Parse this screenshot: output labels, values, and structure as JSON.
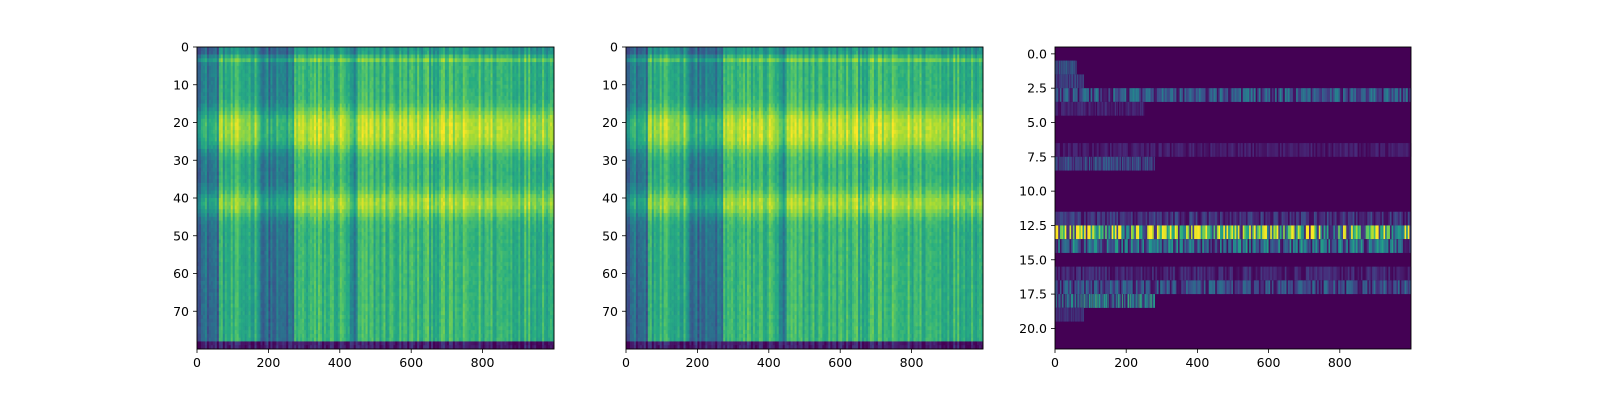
{
  "chart_data": [
    {
      "type": "heatmap",
      "title": "",
      "xlabel": "",
      "ylabel": "",
      "colormap": "viridis",
      "xlim": [
        0,
        1000
      ],
      "ylim": [
        80,
        0
      ],
      "xticks": [
        0,
        200,
        400,
        600,
        800
      ],
      "yticks": [
        0,
        10,
        20,
        30,
        40,
        50,
        60,
        70
      ],
      "xtick_labels": [
        "0",
        "200",
        "400",
        "600",
        "800"
      ],
      "ytick_labels": [
        "0",
        "10",
        "20",
        "30",
        "40",
        "50",
        "60",
        "70"
      ],
      "description_values": {
        "rows": 80,
        "cols": 1000,
        "bands": [
          {
            "row_center": 19,
            "strength": 0.9
          },
          {
            "row_center": 24,
            "strength": 0.85
          },
          {
            "row_center": 41,
            "strength": 0.9
          }
        ],
        "dark_columns": [
          [
            0,
            60
          ],
          [
            180,
            270
          ],
          [
            430,
            450
          ]
        ],
        "dark_bottom_rows": [
          79,
          80
        ]
      }
    },
    {
      "type": "heatmap",
      "title": "",
      "xlabel": "",
      "ylabel": "",
      "colormap": "viridis",
      "xlim": [
        0,
        1000
      ],
      "ylim": [
        80,
        0
      ],
      "xticks": [
        0,
        200,
        400,
        600,
        800
      ],
      "yticks": [
        0,
        10,
        20,
        30,
        40,
        50,
        60,
        70
      ],
      "xtick_labels": [
        "0",
        "200",
        "400",
        "600",
        "800"
      ],
      "ytick_labels": [
        "0",
        "10",
        "20",
        "30",
        "40",
        "50",
        "60",
        "70"
      ],
      "description_values": {
        "rows": 80,
        "cols": 1000,
        "bands": [
          {
            "row_center": 19,
            "strength": 0.9
          },
          {
            "row_center": 24,
            "strength": 0.85
          },
          {
            "row_center": 41,
            "strength": 0.9
          }
        ],
        "dark_columns": [
          [
            0,
            60
          ],
          [
            180,
            270
          ],
          [
            430,
            450
          ]
        ],
        "dark_bottom_rows": [
          79,
          80
        ]
      }
    },
    {
      "type": "heatmap",
      "title": "",
      "xlabel": "",
      "ylabel": "",
      "colormap": "viridis",
      "xlim": [
        0,
        1000
      ],
      "ylim": [
        21.5,
        -0.5
      ],
      "xticks": [
        0,
        200,
        400,
        600,
        800
      ],
      "yticks": [
        0.0,
        2.5,
        5.0,
        7.5,
        10.0,
        12.5,
        15.0,
        17.5,
        20.0
      ],
      "xtick_labels": [
        "0",
        "200",
        "400",
        "600",
        "800"
      ],
      "ytick_labels": [
        "0.0",
        "2.5",
        "5.0",
        "7.5",
        "10.0",
        "12.5",
        "15.0",
        "17.5",
        "20.0"
      ],
      "active_rows": [
        {
          "row": 1,
          "x_range": [
            0,
            60
          ],
          "value": 0.35
        },
        {
          "row": 2,
          "x_range": [
            0,
            80
          ],
          "value": 0.3
        },
        {
          "row": 3,
          "x_range": [
            0,
            1000
          ],
          "value": 0.35
        },
        {
          "row": 4,
          "x_range": [
            0,
            250
          ],
          "value": 0.15
        },
        {
          "row": 7,
          "x_range": [
            0,
            1000
          ],
          "value": 0.1
        },
        {
          "row": 8,
          "x_range": [
            0,
            280
          ],
          "value": 0.3
        },
        {
          "row": 12,
          "x_range": [
            0,
            1000
          ],
          "value": 0.2
        },
        {
          "row": 13,
          "x_range": [
            0,
            1000
          ],
          "value": 0.95
        },
        {
          "row": 14,
          "x_range": [
            0,
            1000
          ],
          "value": 0.45
        },
        {
          "row": 16,
          "x_range": [
            0,
            1000
          ],
          "value": 0.15
        },
        {
          "row": 17,
          "x_range": [
            0,
            1000
          ],
          "value": 0.3
        },
        {
          "row": 18,
          "x_range": [
            0,
            280
          ],
          "value": 0.55
        },
        {
          "row": 19,
          "x_range": [
            0,
            80
          ],
          "value": 0.2
        }
      ]
    }
  ]
}
